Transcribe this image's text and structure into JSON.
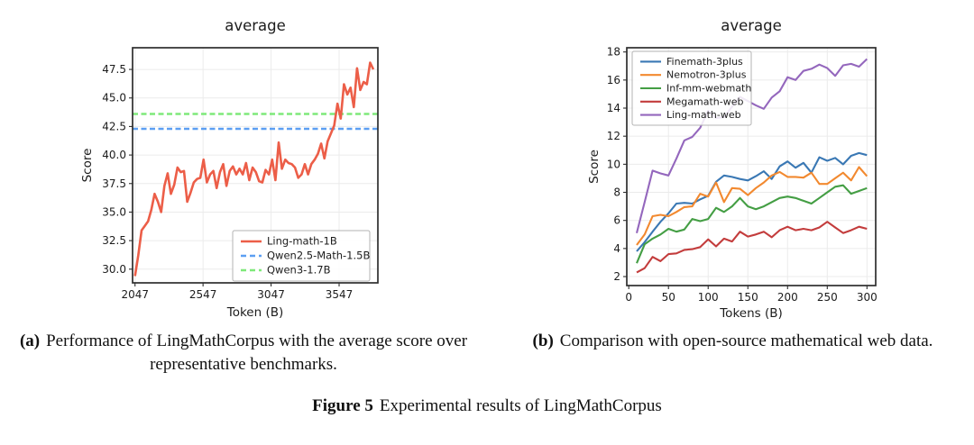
{
  "figure": {
    "caption_a": {
      "label": "(a)",
      "text": "Performance of LingMathCorpus with the average score over representative benchmarks."
    },
    "caption_b": {
      "label": "(b)",
      "text": "Comparison with open-source mathematical web data."
    },
    "figure_caption": {
      "label": "Figure 5",
      "text": "Experimental results of LingMathCorpus"
    }
  },
  "chart_data": [
    {
      "id": "chart-a",
      "type": "line",
      "title": "average",
      "xlabel": "Token (B)",
      "ylabel": "Score",
      "xlim": [
        2029,
        3832
      ],
      "ylim": [
        28.8,
        49.4
      ],
      "grid": true,
      "legend_pos": "bottom-right",
      "xticks": {
        "values": [
          2047,
          2547,
          3047,
          3547
        ],
        "labels": [
          "2047",
          "2547",
          "3047",
          "3547"
        ]
      },
      "yticks": {
        "values": [
          30.0,
          32.5,
          35.0,
          37.5,
          40.0,
          42.5,
          45.0,
          47.5
        ],
        "labels": [
          "30.0",
          "32.5",
          "35.0",
          "37.5",
          "40.0",
          "42.5",
          "45.0",
          "47.5"
        ]
      },
      "x": [
        2047,
        2071,
        2095,
        2119,
        2143,
        2167,
        2191,
        2215,
        2239,
        2263,
        2287,
        2311,
        2335,
        2359,
        2383,
        2407,
        2431,
        2455,
        2479,
        2503,
        2527,
        2551,
        2575,
        2599,
        2623,
        2647,
        2671,
        2695,
        2719,
        2743,
        2767,
        2791,
        2815,
        2839,
        2863,
        2887,
        2911,
        2935,
        2959,
        2983,
        3007,
        3031,
        3055,
        3079,
        3103,
        3127,
        3151,
        3175,
        3199,
        3223,
        3247,
        3271,
        3295,
        3319,
        3343,
        3367,
        3391,
        3415,
        3439,
        3463,
        3487,
        3511,
        3535,
        3559,
        3583,
        3607,
        3631,
        3655,
        3679,
        3703,
        3727,
        3751,
        3775,
        3799
      ],
      "series": [
        {
          "name": "Ling-math-1B",
          "color": "#ec5e48",
          "dash": false,
          "width": 2.6,
          "values": [
            29.4,
            31.2,
            33.4,
            33.8,
            34.2,
            35.2,
            36.6,
            35.9,
            35.0,
            37.3,
            38.4,
            36.6,
            37.4,
            38.9,
            38.5,
            38.6,
            35.9,
            36.7,
            37.6,
            37.9,
            38.0,
            39.6,
            37.6,
            38.3,
            38.6,
            37.1,
            38.5,
            39.2,
            37.3,
            38.6,
            39.0,
            38.3,
            38.8,
            38.3,
            39.3,
            37.8,
            38.9,
            38.5,
            37.7,
            37.6,
            38.7,
            38.3,
            39.6,
            37.8,
            41.1,
            38.8,
            39.6,
            39.3,
            39.2,
            38.9,
            38.0,
            38.3,
            39.2,
            38.3,
            39.2,
            39.6,
            40.1,
            41.0,
            39.7,
            41.2,
            41.9,
            42.6,
            44.5,
            43.2,
            46.2,
            45.3,
            45.9,
            44.2,
            47.6,
            45.7,
            46.4,
            46.2,
            48.1,
            47.5
          ]
        },
        {
          "name": "Qwen2.5-Math-1.5B",
          "color": "#5c9ff2",
          "dash": true,
          "width": 2.4,
          "hline": 42.3
        },
        {
          "name": "Qwen3-1.7B",
          "color": "#7fe97a",
          "dash": true,
          "width": 2.4,
          "hline": 43.6
        }
      ]
    },
    {
      "id": "chart-b",
      "type": "line",
      "title": "average",
      "xlabel": "Tokens (B)",
      "ylabel": "Score",
      "xlim": [
        -2.5,
        311
      ],
      "ylim": [
        1.36,
        18.3
      ],
      "grid": true,
      "legend_pos": "top-left",
      "xticks": {
        "values": [
          0,
          50,
          100,
          150,
          200,
          250,
          300
        ],
        "labels": [
          "0",
          "50",
          "100",
          "150",
          "200",
          "250",
          "300"
        ]
      },
      "yticks": {
        "values": [
          2,
          4,
          6,
          8,
          10,
          12,
          14,
          16,
          18
        ],
        "labels": [
          "2",
          "4",
          "6",
          "8",
          "10",
          "12",
          "14",
          "16",
          "18"
        ]
      },
      "x": [
        10,
        20,
        30,
        40,
        50,
        60,
        70,
        80,
        90,
        100,
        110,
        120,
        130,
        140,
        150,
        160,
        170,
        180,
        190,
        200,
        210,
        220,
        230,
        240,
        250,
        260,
        270,
        280,
        290,
        300
      ],
      "series": [
        {
          "name": "Finemath-3plus",
          "color": "#3a78b4",
          "dash": false,
          "width": 2.1,
          "values": [
            3.8,
            4.45,
            5.2,
            5.9,
            6.5,
            7.2,
            7.25,
            7.2,
            7.5,
            7.75,
            8.75,
            9.2,
            9.1,
            8.95,
            8.85,
            9.15,
            9.5,
            8.95,
            9.85,
            10.2,
            9.75,
            10.1,
            9.4,
            10.5,
            10.25,
            10.45,
            10.0,
            10.6,
            10.8,
            10.65
          ]
        },
        {
          "name": "Nemotron-3plus",
          "color": "#f2892f",
          "dash": false,
          "width": 2.1,
          "values": [
            4.25,
            5.0,
            6.3,
            6.4,
            6.3,
            6.6,
            6.95,
            7.0,
            7.9,
            7.7,
            8.7,
            7.3,
            8.3,
            8.25,
            7.8,
            8.3,
            8.7,
            9.2,
            9.45,
            9.1,
            9.1,
            9.05,
            9.4,
            8.6,
            8.6,
            9.0,
            9.4,
            8.85,
            9.8,
            9.15
          ]
        },
        {
          "name": "Inf-mm-webmath",
          "color": "#449e44",
          "dash": false,
          "width": 2.1,
          "values": [
            2.95,
            4.3,
            4.7,
            5.0,
            5.4,
            5.2,
            5.35,
            6.1,
            5.95,
            6.1,
            6.9,
            6.6,
            7.0,
            7.6,
            7.0,
            6.8,
            7.0,
            7.3,
            7.6,
            7.7,
            7.6,
            7.4,
            7.2,
            7.6,
            8.0,
            8.4,
            8.5,
            7.9,
            8.1,
            8.3
          ]
        },
        {
          "name": "Megamath-web",
          "color": "#c33c3c",
          "dash": false,
          "width": 2.1,
          "values": [
            2.3,
            2.6,
            3.4,
            3.1,
            3.6,
            3.65,
            3.9,
            3.95,
            4.1,
            4.65,
            4.15,
            4.7,
            4.5,
            5.2,
            4.85,
            5.0,
            5.2,
            4.8,
            5.3,
            5.55,
            5.3,
            5.4,
            5.3,
            5.5,
            5.9,
            5.5,
            5.1,
            5.3,
            5.55,
            5.4
          ]
        },
        {
          "name": "Ling-math-web",
          "color": "#9467bd",
          "dash": false,
          "width": 2.1,
          "values": [
            5.1,
            7.3,
            9.55,
            9.35,
            9.2,
            10.4,
            11.7,
            11.95,
            12.6,
            13.8,
            13.3,
            13.35,
            14.1,
            14.8,
            14.5,
            14.2,
            13.95,
            14.75,
            15.2,
            16.2,
            16.0,
            16.65,
            16.8,
            17.1,
            16.85,
            16.3,
            17.05,
            17.15,
            16.95,
            17.5
          ]
        }
      ]
    }
  ]
}
